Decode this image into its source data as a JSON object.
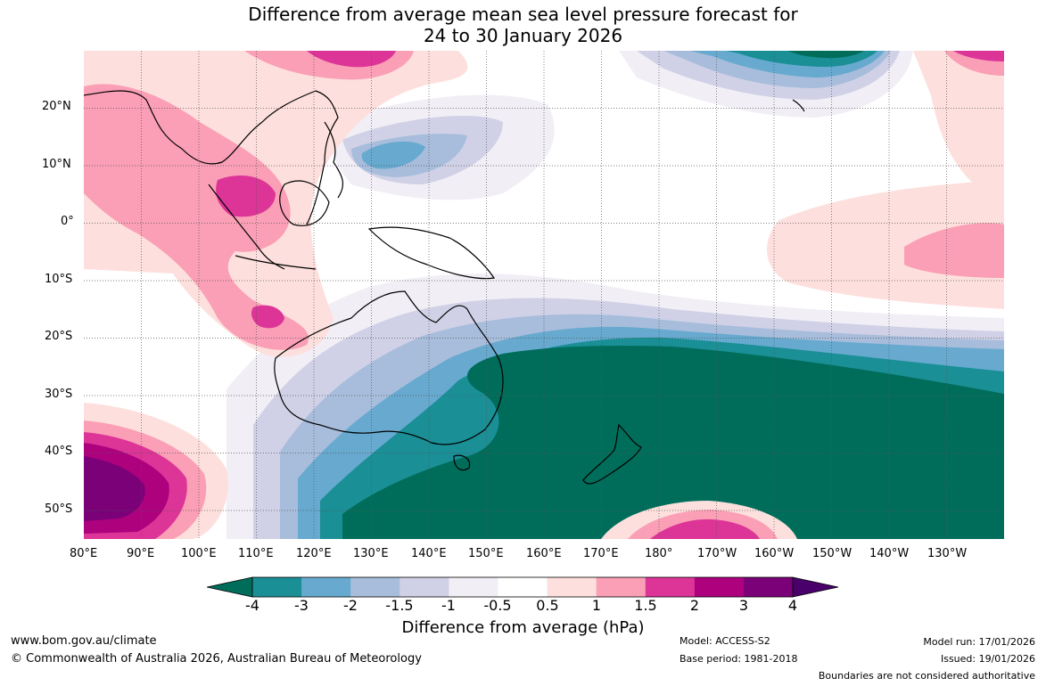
{
  "title": {
    "line1": "Difference from average mean sea level pressure forecast for",
    "line2": "24 to 30 January 2026"
  },
  "axes": {
    "lat_labels": [
      "20°N",
      "10°N",
      "0°",
      "10°S",
      "20°S",
      "30°S",
      "40°S",
      "50°S"
    ],
    "lon_labels": [
      "80°E",
      "90°E",
      "100°E",
      "110°E",
      "120°E",
      "130°E",
      "140°E",
      "150°E",
      "160°E",
      "170°E",
      "180°",
      "170°W",
      "160°W",
      "150°W",
      "140°W",
      "130°W"
    ]
  },
  "colorbar": {
    "title": "Difference from average (hPa)",
    "tick_labels": [
      "-4",
      "-3",
      "-2",
      "-1.5",
      "-1",
      "-0.5",
      "0.5",
      "1",
      "1.5",
      "2",
      "3",
      "4"
    ],
    "colors": [
      "#006d5b",
      "#1a8f96",
      "#67a9cf",
      "#a7bddb",
      "#d0d1e6",
      "#f1eef6",
      "#ffffff",
      "#fde0dd",
      "#fa9fb5",
      "#dd3497",
      "#ae017e",
      "#7a0177",
      "#49006a"
    ]
  },
  "footer": {
    "url": "www.bom.gov.au/climate",
    "copyright": "© Commonwealth of Australia 2026, Australian Bureau of Meteorology",
    "model": "Model: ACCESS-S2",
    "base_period": "Base period: 1981-2018",
    "model_run": "Model run: 17/01/2026",
    "issued": "Issued: 19/01/2026",
    "boundaries": "Boundaries are not considered authoritative"
  }
}
